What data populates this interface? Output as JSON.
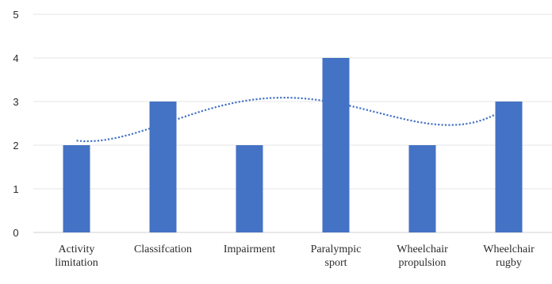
{
  "chart_data": {
    "type": "bar",
    "categories": [
      [
        "Activity",
        "limitation"
      ],
      [
        "Classifcation"
      ],
      [
        "Impairment"
      ],
      [
        "Paralympic",
        "sport"
      ],
      [
        "Wheelchair",
        "propulsion"
      ],
      [
        "Wheelchair",
        "rugby"
      ]
    ],
    "values": [
      2,
      3,
      2,
      4,
      2,
      3
    ],
    "ylim": [
      0,
      5
    ],
    "yticks": [
      "0",
      "1",
      "2",
      "3",
      "4",
      "5"
    ],
    "grid": true,
    "trendline": {
      "type": "polynomial",
      "style": "dotted"
    },
    "colors": {
      "bar": "#4472C4",
      "trendline": "#4472C4",
      "grid": "#e6e6e6",
      "axis": "#d0d0d0"
    }
  }
}
